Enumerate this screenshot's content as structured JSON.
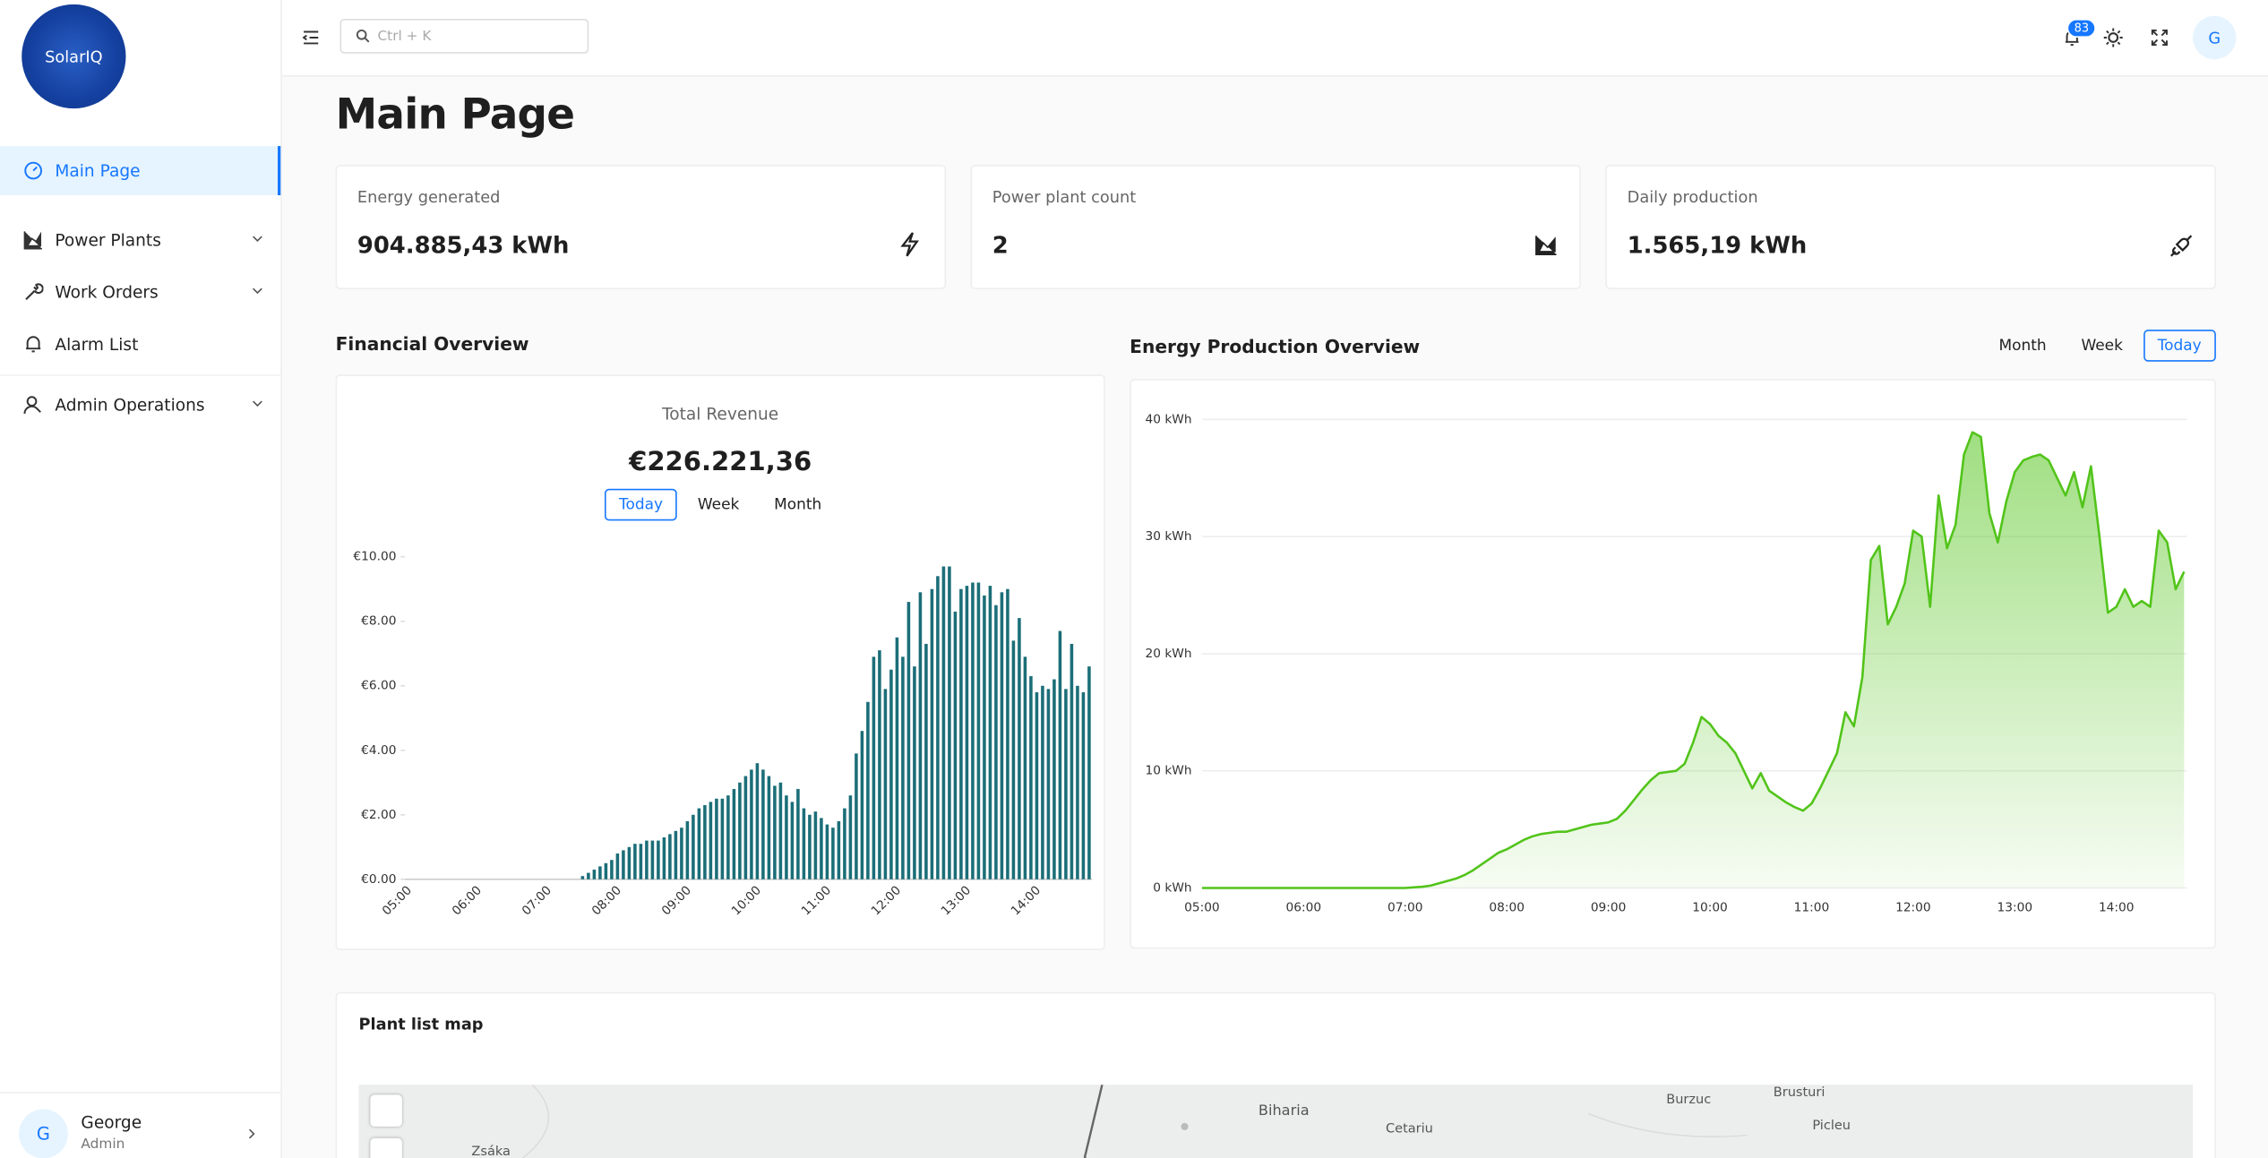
{
  "sidebar": {
    "logo": "SolarIQ",
    "nav": [
      {
        "label": "Main Page"
      },
      {
        "label": "Power Plants"
      },
      {
        "label": "Work Orders"
      },
      {
        "label": "Alarm List"
      },
      {
        "label": "Admin Operations"
      }
    ],
    "user": {
      "initial": "G",
      "name": "George",
      "role": "Admin"
    }
  },
  "header": {
    "search_placeholder": "Ctrl + K",
    "notification_count": "83",
    "avatar": "G"
  },
  "page_title": "Main Page",
  "stats": [
    {
      "label": "Energy generated",
      "value": "904.885,43 kWh"
    },
    {
      "label": "Power plant count",
      "value": "2"
    },
    {
      "label": "Daily production",
      "value": "1.565,19 kWh"
    }
  ],
  "chart_data": [
    {
      "type": "bar",
      "title": "Financial Overview",
      "subtitle": "Total Revenue",
      "total": "€226.221,36",
      "tabs": [
        "Today",
        "Week",
        "Month"
      ],
      "active_tab": 0,
      "color": "#1b6e78",
      "categories": [
        "05:00",
        null,
        null,
        null,
        null,
        null,
        null,
        null,
        null,
        null,
        null,
        null,
        "06:00",
        null,
        null,
        null,
        null,
        null,
        null,
        null,
        null,
        null,
        null,
        null,
        "07:00",
        null,
        null,
        null,
        null,
        null,
        null,
        null,
        null,
        null,
        null,
        null,
        "08:00",
        null,
        null,
        null,
        null,
        null,
        null,
        null,
        null,
        null,
        null,
        null,
        "09:00",
        null,
        null,
        null,
        null,
        null,
        null,
        null,
        null,
        null,
        null,
        null,
        "10:00",
        null,
        null,
        null,
        null,
        null,
        null,
        null,
        null,
        null,
        null,
        null,
        "11:00",
        null,
        null,
        null,
        null,
        null,
        null,
        null,
        null,
        null,
        null,
        null,
        "12:00",
        null,
        null,
        null,
        null,
        null,
        null,
        null,
        null,
        null,
        null,
        null,
        "13:00",
        null,
        null,
        null,
        null,
        null,
        null,
        null,
        null,
        null,
        null,
        null,
        "14:00",
        null,
        null,
        null,
        null,
        null,
        null,
        null,
        null,
        null
      ],
      "values": [
        0,
        0,
        0,
        0,
        0,
        0,
        0,
        0,
        0,
        0,
        0,
        0,
        0,
        0,
        0,
        0,
        0,
        0,
        0,
        0,
        0,
        0,
        0,
        0,
        0,
        0,
        0,
        0,
        0,
        0,
        0.1,
        0.2,
        0.3,
        0.4,
        0.5,
        0.6,
        0.8,
        0.9,
        1.0,
        1.1,
        1.1,
        1.2,
        1.2,
        1.2,
        1.3,
        1.4,
        1.5,
        1.6,
        1.8,
        2.0,
        2.2,
        2.3,
        2.4,
        2.5,
        2.5,
        2.6,
        2.8,
        3.0,
        3.2,
        3.4,
        3.6,
        3.4,
        3.2,
        2.9,
        3.0,
        2.6,
        2.4,
        2.8,
        2.2,
        2.0,
        2.1,
        1.9,
        1.7,
        1.6,
        1.8,
        2.2,
        2.6,
        3.9,
        4.6,
        5.5,
        6.9,
        7.1,
        5.9,
        6.5,
        7.5,
        6.9,
        8.6,
        6.6,
        8.9,
        7.3,
        9.0,
        9.4,
        9.7,
        9.7,
        8.3,
        9.0,
        9.1,
        9.2,
        9.2,
        8.8,
        9.1,
        8.5,
        8.9,
        9.0,
        7.4,
        8.1,
        6.9,
        6.3,
        5.8,
        6.0,
        5.9,
        6.2,
        7.7,
        5.9,
        7.3,
        6.0,
        5.8,
        6.6
      ],
      "ylim": [
        0,
        10
      ],
      "yticks": [
        {
          "value": 0,
          "label": "€0.00"
        },
        {
          "value": 2,
          "label": "€2.00"
        },
        {
          "value": 4,
          "label": "€4.00"
        },
        {
          "value": 6,
          "label": "€6.00"
        },
        {
          "value": 8,
          "label": "€8.00"
        },
        {
          "value": 10,
          "label": "€10.00"
        }
      ],
      "grid": false
    },
    {
      "type": "area",
      "title": "Energy Production Overview",
      "tabs": [
        "Month",
        "Week",
        "Today"
      ],
      "active_tab": 2,
      "color": "#52c41a",
      "categories": [
        "05:00",
        null,
        null,
        null,
        null,
        null,
        null,
        null,
        null,
        null,
        null,
        null,
        "06:00",
        null,
        null,
        null,
        null,
        null,
        null,
        null,
        null,
        null,
        null,
        null,
        "07:00",
        null,
        null,
        null,
        null,
        null,
        null,
        null,
        null,
        null,
        null,
        null,
        "08:00",
        null,
        null,
        null,
        null,
        null,
        null,
        null,
        null,
        null,
        null,
        null,
        "09:00",
        null,
        null,
        null,
        null,
        null,
        null,
        null,
        null,
        null,
        null,
        null,
        "10:00",
        null,
        null,
        null,
        null,
        null,
        null,
        null,
        null,
        null,
        null,
        null,
        "11:00",
        null,
        null,
        null,
        null,
        null,
        null,
        null,
        null,
        null,
        null,
        null,
        "12:00",
        null,
        null,
        null,
        null,
        null,
        null,
        null,
        null,
        null,
        null,
        null,
        "13:00",
        null,
        null,
        null,
        null,
        null,
        null,
        null,
        null,
        null,
        null,
        null,
        "14:00",
        null,
        null,
        null,
        null,
        null,
        null,
        null,
        null
      ],
      "values": [
        0,
        0,
        0,
        0,
        0,
        0,
        0,
        0,
        0,
        0,
        0,
        0,
        0,
        0,
        0,
        0,
        0,
        0,
        0,
        0,
        0,
        0,
        0,
        0,
        0,
        0.05,
        0.1,
        0.2,
        0.4,
        0.6,
        0.8,
        1.1,
        1.5,
        2.0,
        2.5,
        3.0,
        3.3,
        3.7,
        4.1,
        4.4,
        4.6,
        4.7,
        4.8,
        4.8,
        5.0,
        5.2,
        5.4,
        5.5,
        5.6,
        5.9,
        6.6,
        7.5,
        8.4,
        9.2,
        9.8,
        9.9,
        10.0,
        10.6,
        12.4,
        14.6,
        14.0,
        13.0,
        12.4,
        11.5,
        10.0,
        8.5,
        9.8,
        8.3,
        7.8,
        7.3,
        6.9,
        6.6,
        7.2,
        8.5,
        10.0,
        11.5,
        15.0,
        13.8,
        18.0,
        28.0,
        29.2,
        22.5,
        24.0,
        26.0,
        30.5,
        30.0,
        24.0,
        33.5,
        29.0,
        31.0,
        37.0,
        38.9,
        38.5,
        32.0,
        29.5,
        33.0,
        35.5,
        36.5,
        36.8,
        37.0,
        36.5,
        35.0,
        33.5,
        35.5,
        32.5,
        36.0,
        30.0,
        23.5,
        24.0,
        25.5,
        24.0,
        24.5,
        24.0,
        30.5,
        29.5,
        25.5,
        27.0
      ],
      "ylim": [
        0,
        40
      ],
      "yticks": [
        {
          "value": 0,
          "label": "0 kWh"
        },
        {
          "value": 10,
          "label": "10 kWh"
        },
        {
          "value": 20,
          "label": "20 kWh"
        },
        {
          "value": 30,
          "label": "30 kWh"
        },
        {
          "value": 40,
          "label": "40 kWh"
        }
      ],
      "grid": true
    }
  ],
  "map": {
    "title": "Plant list map",
    "places": [
      "Biharia",
      "Burzuc",
      "Brusturi",
      "Cetariu",
      "Picleu",
      "Zsáka"
    ]
  }
}
